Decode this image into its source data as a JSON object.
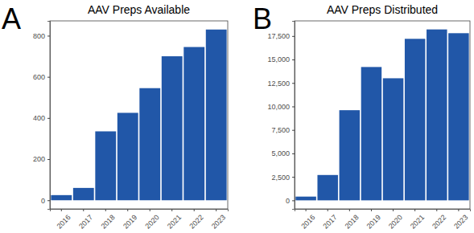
{
  "chart_data": [
    {
      "type": "bar",
      "title": "AAV Preps Available",
      "annotations": [
        "A"
      ],
      "categories": [
        "2016",
        "2017",
        "2018",
        "2019",
        "2020",
        "2021",
        "2022",
        "2023"
      ],
      "values": [
        25,
        60,
        335,
        425,
        545,
        700,
        745,
        830
      ],
      "color": "#2157a8",
      "ylim": [
        -42,
        872
      ],
      "yticks": [
        0,
        200,
        400,
        600,
        800
      ],
      "grid": false
    },
    {
      "type": "bar",
      "title": "AAV Preps Distributed",
      "annotations": [
        "B"
      ],
      "categories": [
        "2016",
        "2017",
        "2018",
        "2019",
        "2020",
        "2021",
        "2022",
        "2023"
      ],
      "values": [
        400,
        2700,
        9600,
        14200,
        13000,
        17200,
        18200,
        17800
      ],
      "color": "#2157a8",
      "ylim": [
        -910,
        19110
      ],
      "yticks": [
        0,
        {
          "value": 2500,
          "label": "2,500"
        },
        {
          "value": 5000,
          "label": "5,000"
        },
        {
          "value": 7500,
          "label": "7,500"
        },
        {
          "value": 10000,
          "label": "10,000"
        },
        {
          "value": 12500,
          "label": "12,500"
        },
        {
          "value": 15000,
          "label": "15,000"
        },
        {
          "value": 17500,
          "label": "17,500"
        }
      ],
      "grid": false
    }
  ]
}
